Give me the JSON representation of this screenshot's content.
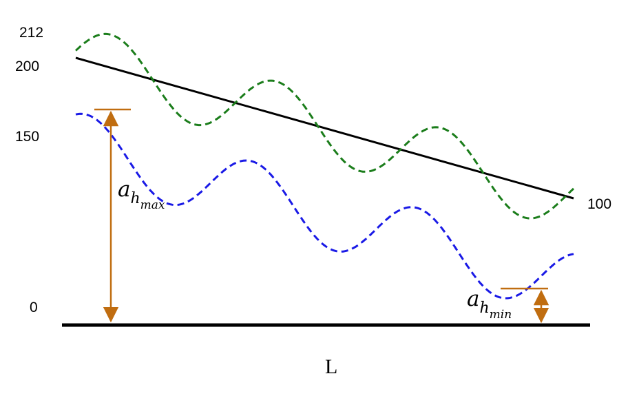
{
  "colors": {
    "baseline": "#000000",
    "gradient_line": "#000000",
    "upper_wave": "#1b7d1b",
    "lower_wave": "#1a1ae6",
    "annotation": "#c06d10"
  },
  "y_labels": {
    "top_peak": "212",
    "start_level": "200",
    "mid_level": "150",
    "zero": "0",
    "end_level": "100"
  },
  "x_label": "L",
  "annotations": {
    "max": {
      "main": "a",
      "sub_letter": "h",
      "sub_text": "max"
    },
    "min": {
      "main": "a",
      "sub_letter": "h",
      "sub_text": "min"
    }
  }
}
